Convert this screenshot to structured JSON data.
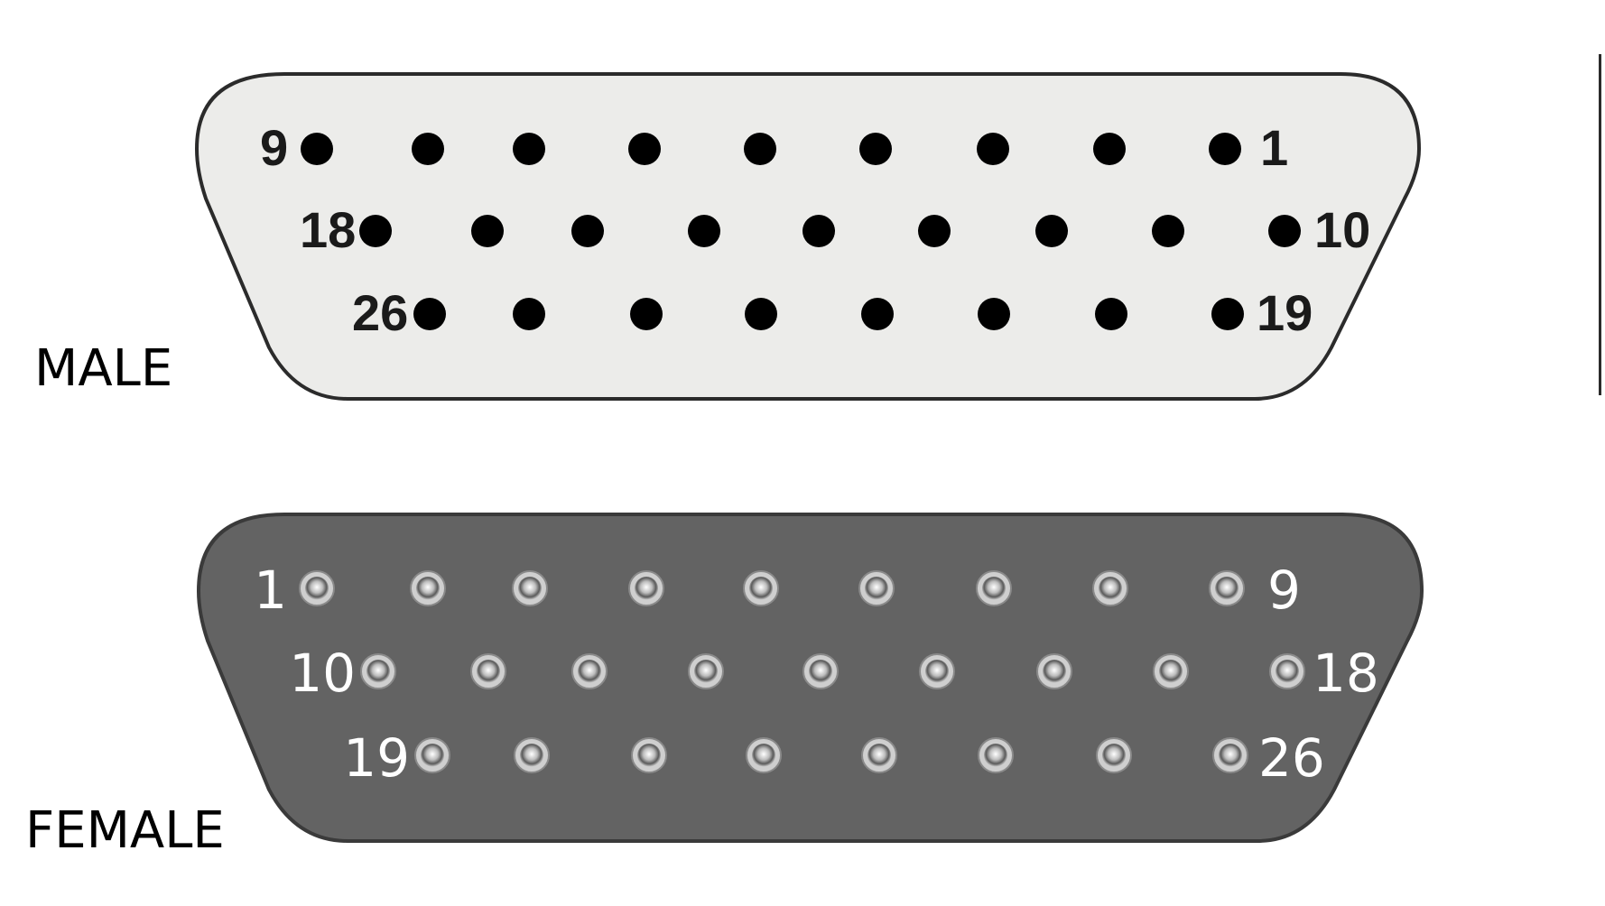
{
  "male": {
    "label": "MALE",
    "shell_fill": "#ececea",
    "pin_color": "#000000",
    "number_color": "#1a1a1a",
    "pin_numbers": {
      "row1_left": "9",
      "row1_right": "1",
      "row2_left": "18",
      "row2_right": "10",
      "row3_left": "26",
      "row3_right": "19"
    }
  },
  "female": {
    "label": "FEMALE",
    "shell_fill": "#636363",
    "socket_color": "#cfcfcf",
    "number_color": "#ffffff",
    "pin_numbers": {
      "row1_left": "1",
      "row1_right": "9",
      "row2_left": "10",
      "row2_right": "18",
      "row3_left": "19",
      "row3_right": "26"
    }
  }
}
